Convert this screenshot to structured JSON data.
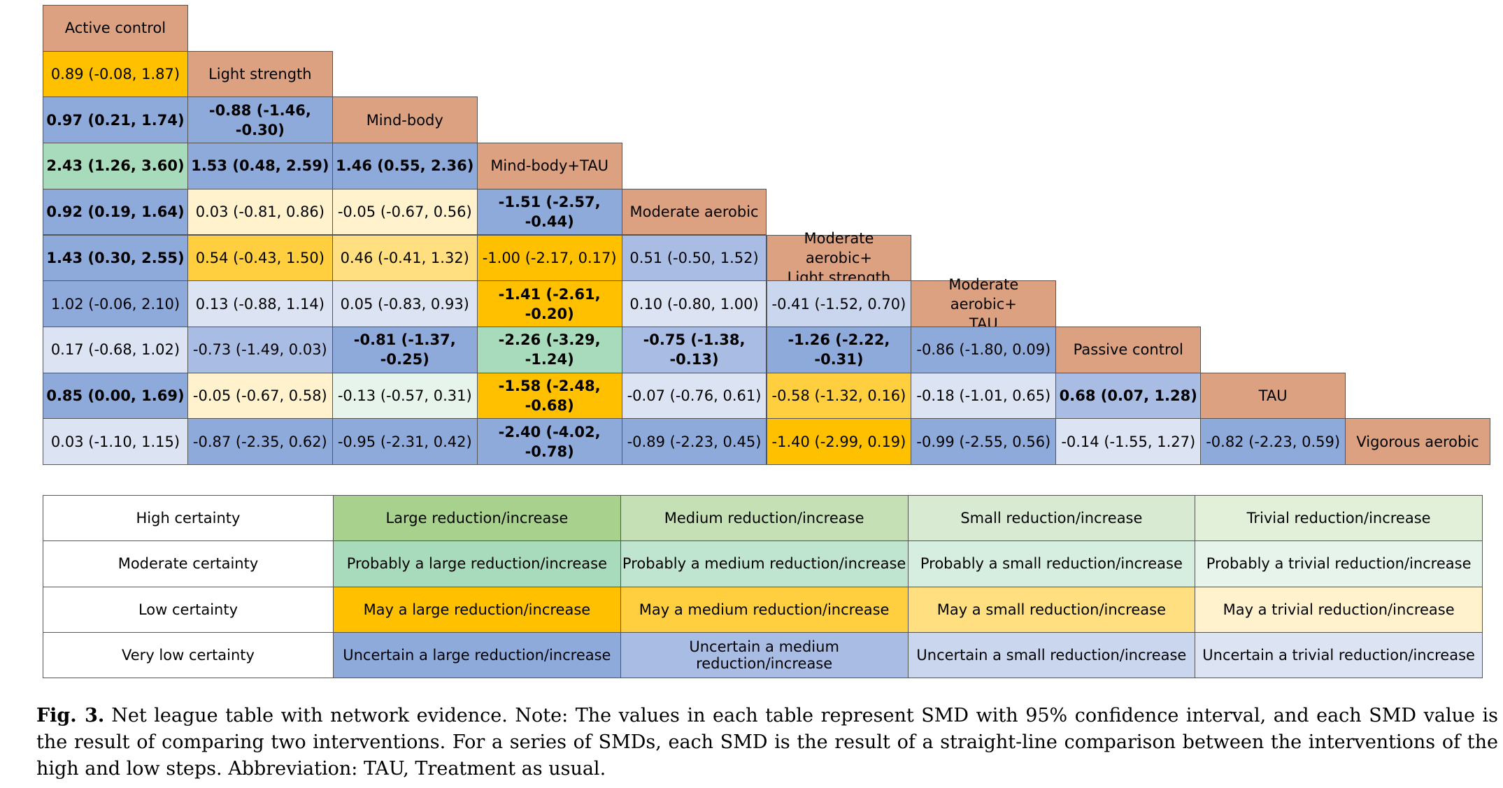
{
  "treatments": [
    "Active control",
    "Light strength",
    "Mind-body",
    "Mind-body+TAU",
    "Moderate aerobic",
    "Moderate aerobic+\nLight strength",
    "Moderate aerobic+\nTAU",
    "Passive control",
    "TAU",
    "Vigorous aerobic"
  ],
  "header_color": "#dba181",
  "color_scale": {
    "hl": "#a9d18e",
    "hm": "#c5e0b4",
    "hs": "#d9ead3",
    "ht": "#e2f0d9",
    "ml": "#a8dbbc",
    "mm": "#bfe4cf",
    "ms": "#d6eedf",
    "mt": "#e6f4ec",
    "ll": "#ffc000",
    "lm": "#ffcf40",
    "ls": "#ffdf7f",
    "lt": "#fff2cc",
    "vl": "#8eaadb",
    "vm": "#a9bde4",
    "vs": "#c9d6ee",
    "vt": "#dce3f2"
  },
  "league": [
    [],
    [
      {
        "t": "0.89 (-0.08, 1.87)",
        "c": "ll",
        "b": false
      }
    ],
    [
      {
        "t": "0.97 (0.21, 1.74)",
        "c": "vl",
        "b": true
      },
      {
        "t": "-0.88 (-1.46, -0.30)",
        "c": "vl",
        "b": true
      }
    ],
    [
      {
        "t": "2.43 (1.26, 3.60)",
        "c": "ml",
        "b": true
      },
      {
        "t": "1.53 (0.48, 2.59)",
        "c": "vl",
        "b": true
      },
      {
        "t": "1.46 (0.55, 2.36)",
        "c": "vl",
        "b": true
      }
    ],
    [
      {
        "t": "0.92 (0.19, 1.64)",
        "c": "vl",
        "b": true
      },
      {
        "t": "0.03 (-0.81, 0.86)",
        "c": "lt",
        "b": false
      },
      {
        "t": "-0.05 (-0.67, 0.56)",
        "c": "lt",
        "b": false
      },
      {
        "t": "-1.51 (-2.57, -0.44)",
        "c": "vl",
        "b": true
      }
    ],
    [
      {
        "t": "1.43 (0.30, 2.55)",
        "c": "vl",
        "b": true
      },
      {
        "t": "0.54 (-0.43, 1.50)",
        "c": "lm",
        "b": false
      },
      {
        "t": "0.46 (-0.41, 1.32)",
        "c": "ls",
        "b": false
      },
      {
        "t": "-1.00 (-2.17, 0.17)",
        "c": "ll",
        "b": false
      },
      {
        "t": "0.51 (-0.50, 1.52)",
        "c": "vm",
        "b": false
      }
    ],
    [
      {
        "t": "1.02 (-0.06, 2.10)",
        "c": "vl",
        "b": false
      },
      {
        "t": "0.13 (-0.88, 1.14)",
        "c": "vt",
        "b": false
      },
      {
        "t": "0.05 (-0.83, 0.93)",
        "c": "vt",
        "b": false
      },
      {
        "t": "-1.41 (-2.61, -0.20)",
        "c": "ll",
        "b": true
      },
      {
        "t": "0.10 (-0.80, 1.00)",
        "c": "vt",
        "b": false
      },
      {
        "t": "-0.41 (-1.52, 0.70)",
        "c": "vs",
        "b": false
      }
    ],
    [
      {
        "t": "0.17 (-0.68, 1.02)",
        "c": "vt",
        "b": false
      },
      {
        "t": "-0.73 (-1.49, 0.03)",
        "c": "vm",
        "b": false
      },
      {
        "t": "-0.81 (-1.37, -0.25)",
        "c": "vl",
        "b": true
      },
      {
        "t": "-2.26 (-3.29, -1.24)",
        "c": "ml",
        "b": true
      },
      {
        "t": "-0.75 (-1.38, -0.13)",
        "c": "vm",
        "b": true
      },
      {
        "t": "-1.26 (-2.22, -0.31)",
        "c": "vl",
        "b": true
      },
      {
        "t": "-0.86 (-1.80, 0.09)",
        "c": "vl",
        "b": false
      }
    ],
    [
      {
        "t": "0.85 (0.00, 1.69)",
        "c": "vl",
        "b": true
      },
      {
        "t": "-0.05 (-0.67, 0.58)",
        "c": "lt",
        "b": false
      },
      {
        "t": "-0.13 (-0.57, 0.31)",
        "c": "mt",
        "b": false
      },
      {
        "t": "-1.58 (-2.48, -0.68)",
        "c": "ll",
        "b": true
      },
      {
        "t": "-0.07 (-0.76, 0.61)",
        "c": "vt",
        "b": false
      },
      {
        "t": "-0.58 (-1.32, 0.16)",
        "c": "lm",
        "b": false
      },
      {
        "t": "-0.18 (-1.01, 0.65)",
        "c": "vt",
        "b": false
      },
      {
        "t": "0.68 (0.07, 1.28)",
        "c": "vm",
        "b": true
      }
    ],
    [
      {
        "t": "0.03 (-1.10, 1.15)",
        "c": "vt",
        "b": false
      },
      {
        "t": "-0.87 (-2.35, 0.62)",
        "c": "vl",
        "b": false
      },
      {
        "t": "-0.95 (-2.31, 0.42)",
        "c": "vl",
        "b": false
      },
      {
        "t": "-2.40 (-4.02, -0.78)",
        "c": "vl",
        "b": true
      },
      {
        "t": "-0.89 (-2.23, 0.45)",
        "c": "vl",
        "b": false
      },
      {
        "t": "-1.40 (-2.99, 0.19)",
        "c": "ll",
        "b": false
      },
      {
        "t": "-0.99 (-2.55, 0.56)",
        "c": "vl",
        "b": false
      },
      {
        "t": "-0.14 (-1.55, 1.27)",
        "c": "vt",
        "b": false
      },
      {
        "t": "-0.82 (-2.23, 0.59)",
        "c": "vl",
        "b": false
      }
    ]
  ],
  "legend": {
    "rows": [
      {
        "label": "High certainty",
        "cells": [
          {
            "text": "Large reduction/increase",
            "c": "hl"
          },
          {
            "text": "Medium reduction/increase",
            "c": "hm"
          },
          {
            "text": "Small reduction/increase",
            "c": "hs"
          },
          {
            "text": "Trivial reduction/increase",
            "c": "ht"
          }
        ]
      },
      {
        "label": "Moderate certainty",
        "cells": [
          {
            "text": "Probably a large reduction/increase",
            "c": "ml"
          },
          {
            "text": "Probably a medium reduction/increase",
            "c": "mm"
          },
          {
            "text": "Probably a small reduction/increase",
            "c": "ms"
          },
          {
            "text": "Probably a trivial reduction/increase",
            "c": "mt"
          }
        ]
      },
      {
        "label": "Low certainty",
        "cells": [
          {
            "text": "May a large reduction/increase",
            "c": "ll"
          },
          {
            "text": "May a medium reduction/increase",
            "c": "lm"
          },
          {
            "text": "May a small reduction/increase",
            "c": "ls"
          },
          {
            "text": "May a trivial reduction/increase",
            "c": "lt"
          }
        ]
      },
      {
        "label": "Very low certainty",
        "cells": [
          {
            "text": "Uncertain a large reduction/increase",
            "c": "vl"
          },
          {
            "text": "Uncertain a medium reduction/increase",
            "c": "vm"
          },
          {
            "text": "Uncertain a small reduction/increase",
            "c": "vs"
          },
          {
            "text": "Uncertain a trivial reduction/increase",
            "c": "vt"
          }
        ]
      }
    ]
  },
  "caption": {
    "label": "Fig. 3.",
    "text": "Net league table with network evidence. Note: The values in each table represent SMD with 95% confidence interval, and each SMD value is the result of comparing two interventions. For a series of SMDs, each SMD is the result of a straight-line comparison between the interventions of the high and low steps. Abbreviation: TAU, Treatment as usual."
  }
}
